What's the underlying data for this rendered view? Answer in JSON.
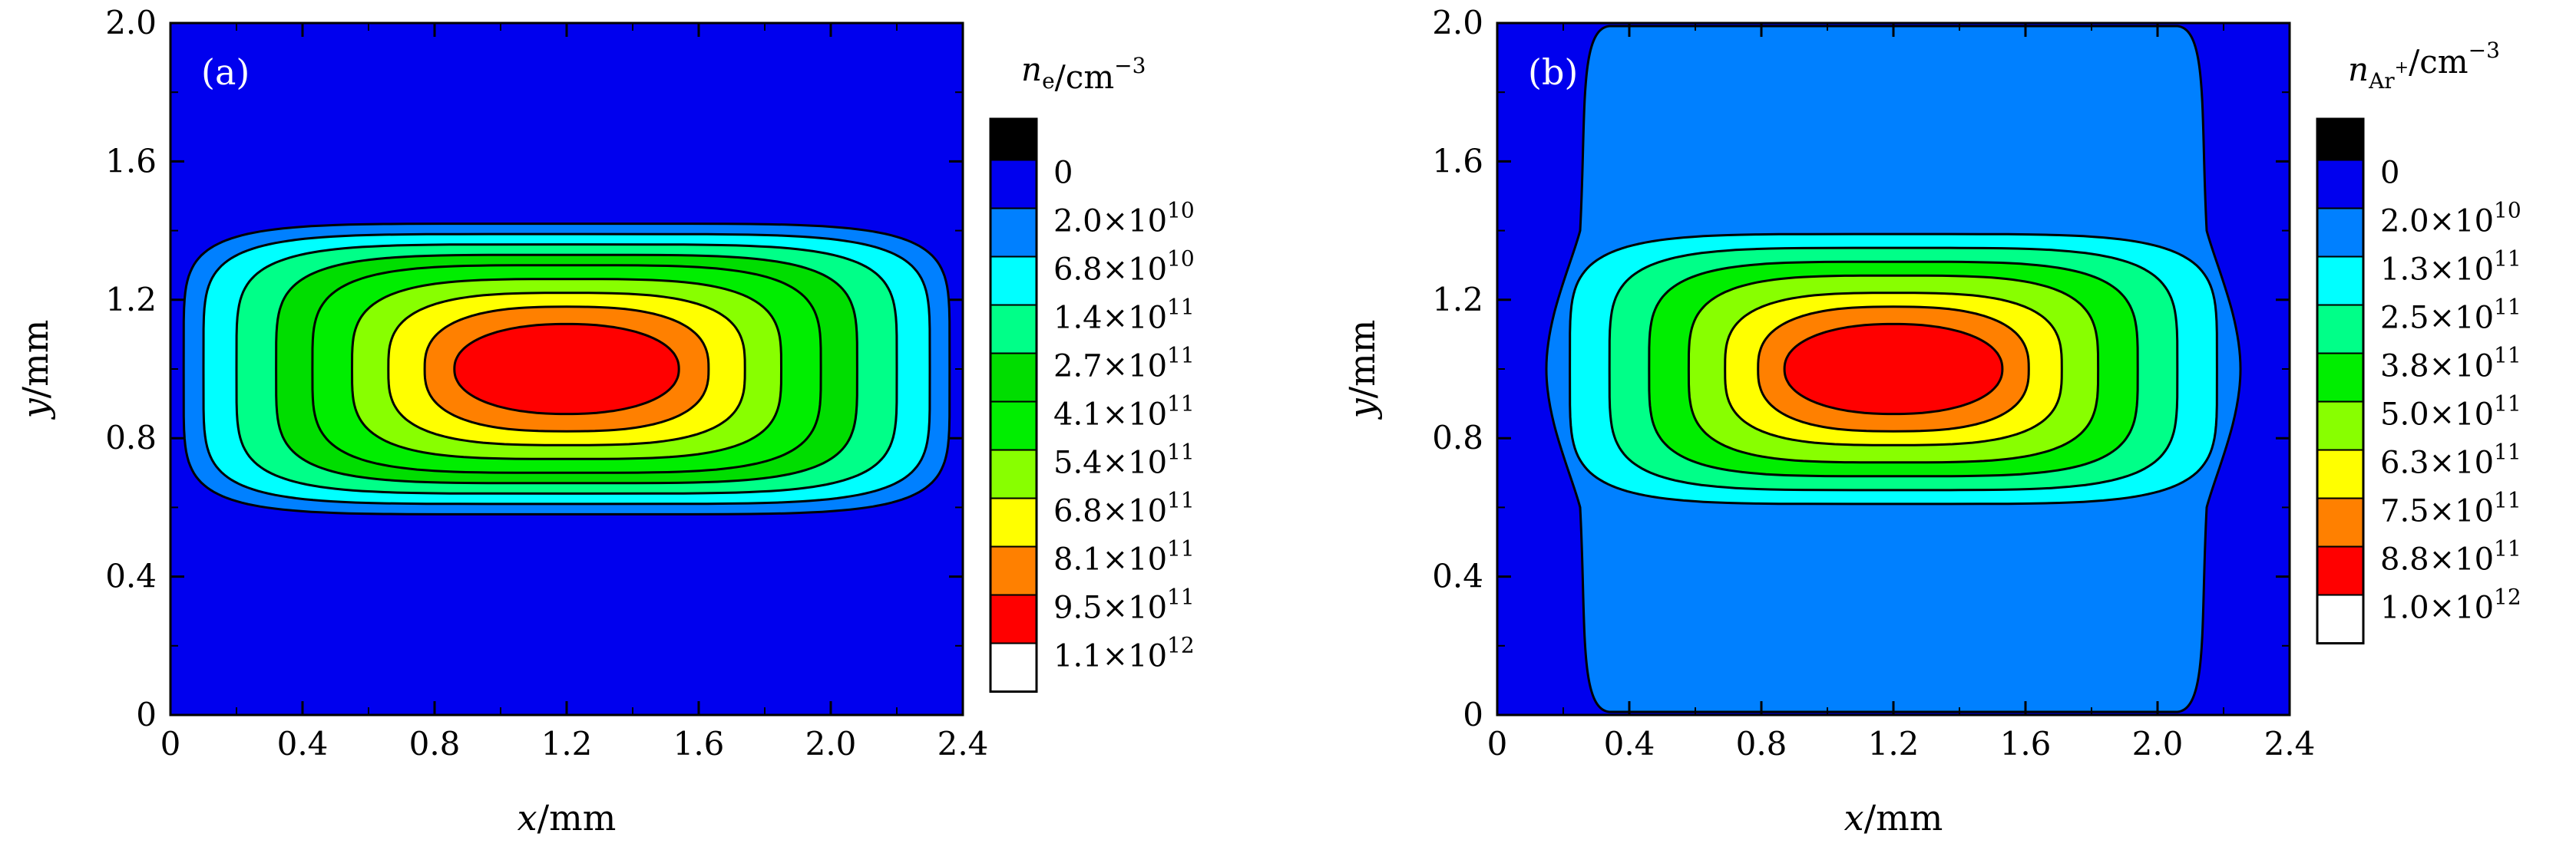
{
  "chart_data": [
    {
      "type": "heatmap",
      "panel_label": "(a)",
      "xlabel": "x/mm",
      "ylabel": "y/mm",
      "xlim": [
        0,
        2.4
      ],
      "ylim": [
        0,
        2.0
      ],
      "x_ticks": [
        "0",
        "0.4",
        "0.8",
        "1.2",
        "1.6",
        "2.0",
        "2.4"
      ],
      "y_ticks": [
        "0",
        "0.4",
        "0.8",
        "1.2",
        "1.6",
        "2.0"
      ],
      "colorbar": {
        "title": "n_e/cm^-3",
        "title_main": "n",
        "title_sub": "e",
        "title_unit": "/cm",
        "title_sup": "−3",
        "levels": [
          {
            "mantissa": "0",
            "exp": "",
            "color": "#0000ee"
          },
          {
            "mantissa": "2.0",
            "exp": "10",
            "color": "#0080ff"
          },
          {
            "mantissa": "6.8",
            "exp": "10",
            "color": "#00ffff"
          },
          {
            "mantissa": "1.4",
            "exp": "11",
            "color": "#00ff88"
          },
          {
            "mantissa": "2.7",
            "exp": "11",
            "color": "#00dd00"
          },
          {
            "mantissa": "4.1",
            "exp": "11",
            "color": "#00ee00"
          },
          {
            "mantissa": "5.4",
            "exp": "11",
            "color": "#88ff00"
          },
          {
            "mantissa": "6.8",
            "exp": "11",
            "color": "#ffff00"
          },
          {
            "mantissa": "8.1",
            "exp": "11",
            "color": "#ff8000"
          },
          {
            "mantissa": "9.5",
            "exp": "11",
            "color": "#ff0000"
          },
          {
            "mantissa": "1.1",
            "exp": "12",
            "color": "#ffffff"
          }
        ]
      },
      "contours": [
        {
          "level": "2.0×10^10",
          "color": "#0080ff",
          "cx": 1.2,
          "cy": 1.0,
          "hx": 1.16,
          "hy": 0.42
        },
        {
          "level": "6.8×10^10",
          "color": "#00ffff",
          "cx": 1.2,
          "cy": 1.0,
          "hx": 1.1,
          "hy": 0.39
        },
        {
          "level": "1.4×10^11",
          "color": "#00ff88",
          "cx": 1.2,
          "cy": 1.0,
          "hx": 1.0,
          "hy": 0.36
        },
        {
          "level": "2.7×10^11",
          "color": "#00dd00",
          "cx": 1.2,
          "cy": 1.0,
          "hx": 0.88,
          "hy": 0.33
        },
        {
          "level": "4.1×10^11",
          "color": "#00ee00",
          "cx": 1.2,
          "cy": 1.0,
          "hx": 0.77,
          "hy": 0.3
        },
        {
          "level": "5.4×10^11",
          "color": "#88ff00",
          "cx": 1.2,
          "cy": 1.0,
          "hx": 0.65,
          "hy": 0.26
        },
        {
          "level": "6.8×10^11",
          "color": "#ffff00",
          "cx": 1.2,
          "cy": 1.0,
          "hx": 0.54,
          "hy": 0.22
        },
        {
          "level": "8.1×10^11",
          "color": "#ff8000",
          "cx": 1.2,
          "cy": 1.0,
          "hx": 0.43,
          "hy": 0.18
        },
        {
          "level": "9.5×10^11",
          "color": "#ff0000",
          "cx": 1.2,
          "cy": 1.0,
          "hx": 0.34,
          "hy": 0.13
        }
      ]
    },
    {
      "type": "heatmap",
      "panel_label": "(b)",
      "xlabel": "x/mm",
      "ylabel": "y/mm",
      "xlim": [
        0,
        2.4
      ],
      "ylim": [
        0,
        2.0
      ],
      "x_ticks": [
        "0",
        "0.4",
        "0.8",
        "1.2",
        "1.6",
        "2.0",
        "2.4"
      ],
      "y_ticks": [
        "0",
        "0.4",
        "0.8",
        "1.2",
        "1.6",
        "2.0"
      ],
      "colorbar": {
        "title": "n_Ar+/cm^-3",
        "title_main": "n",
        "title_sub": "Ar",
        "title_subsup": "+",
        "title_unit": "/cm",
        "title_sup": "−3",
        "levels": [
          {
            "mantissa": "0",
            "exp": "",
            "color": "#0000ee"
          },
          {
            "mantissa": "2.0",
            "exp": "10",
            "color": "#0080ff"
          },
          {
            "mantissa": "1.3",
            "exp": "11",
            "color": "#00ffff"
          },
          {
            "mantissa": "2.5",
            "exp": "11",
            "color": "#00ff88"
          },
          {
            "mantissa": "3.8",
            "exp": "11",
            "color": "#00ee00"
          },
          {
            "mantissa": "5.0",
            "exp": "11",
            "color": "#88ff00"
          },
          {
            "mantissa": "6.3",
            "exp": "11",
            "color": "#ffff00"
          },
          {
            "mantissa": "7.5",
            "exp": "11",
            "color": "#ff8000"
          },
          {
            "mantissa": "8.8",
            "exp": "11",
            "color": "#ff0000"
          },
          {
            "mantissa": "1.0",
            "exp": "12",
            "color": "#ffffff"
          }
        ]
      },
      "outer_region": {
        "level": "2.0×10^10",
        "color": "#0080ff",
        "x_min": 0.2,
        "x_max": 2.2,
        "y_min": 0.0,
        "y_max": 2.0
      },
      "contours": [
        {
          "level": "1.3×10^11",
          "color": "#00ffff",
          "cx": 1.2,
          "cy": 1.0,
          "hx": 0.98,
          "hy": 0.39
        },
        {
          "level": "2.5×10^11",
          "color": "#00ff88",
          "cx": 1.2,
          "cy": 1.0,
          "hx": 0.86,
          "hy": 0.35
        },
        {
          "level": "3.8×10^11",
          "color": "#00ee00",
          "cx": 1.2,
          "cy": 1.0,
          "hx": 0.74,
          "hy": 0.31
        },
        {
          "level": "5.0×10^11",
          "color": "#88ff00",
          "cx": 1.2,
          "cy": 1.0,
          "hx": 0.62,
          "hy": 0.27
        },
        {
          "level": "6.3×10^11",
          "color": "#ffff00",
          "cx": 1.2,
          "cy": 1.0,
          "hx": 0.51,
          "hy": 0.22
        },
        {
          "level": "7.5×10^11",
          "color": "#ff8000",
          "cx": 1.2,
          "cy": 1.0,
          "hx": 0.41,
          "hy": 0.18
        },
        {
          "level": "8.8×10^11",
          "color": "#ff0000",
          "cx": 1.2,
          "cy": 1.0,
          "hx": 0.33,
          "hy": 0.13
        }
      ]
    }
  ]
}
